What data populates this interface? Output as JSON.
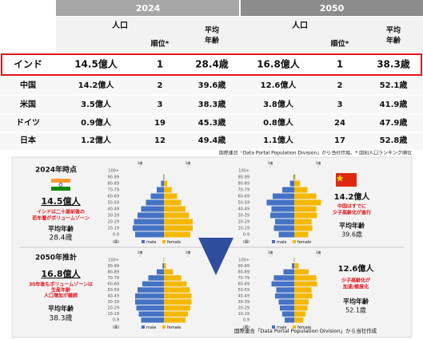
{
  "table": {
    "years": [
      "2024",
      "2050"
    ],
    "headers": {
      "population": "人口",
      "rank": "順位*",
      "age": [
        "平均",
        "年齢"
      ]
    },
    "rows": [
      [
        "インド",
        "14.5億人",
        1,
        "28.4歳",
        "16.8億人",
        1,
        "38.3歳"
      ],
      [
        "中国",
        "14.2億人",
        2,
        "39.6歳",
        "12.6億人",
        2,
        "52.1歳"
      ],
      [
        "米国",
        "3.5億人",
        3,
        "38.3歳",
        "3.8億人",
        3,
        "41.9歳"
      ],
      [
        "ドイツ",
        "0.9億人",
        19,
        "45.3歳",
        "0.8億人",
        24,
        "47.9歳"
      ],
      [
        "日本",
        "1.2億人",
        12,
        "49.4歳",
        "1.1億人",
        17,
        "52.8歳"
      ]
    ]
  },
  "note": "国際連合「Data Portal Population Division」から当社作成、* 国別人口ランキング順位",
  "infographic": {
    "top_label": "2024年時点",
    "india_2024_pop": "14.5億人",
    "india_2024_comment": [
      "インドは二十歳前後の",
      "若年層がボリュームゾーン"
    ],
    "age_label": "平均年齢",
    "india_2024_age": "28.4歳",
    "bottom_label": "2050年推計",
    "india_2050_pop": "16.8億人",
    "india_2050_comment": [
      "30年後もボリュームゾーンは",
      "生産年齢",
      "人口増加が継続"
    ],
    "india_2050_age": "38.3歳",
    "china_2024_pop": "14.2億人",
    "china_2024_comment": [
      "中国はすでに",
      "少子高齢化が進行"
    ],
    "china_2024_age": "39.6歳",
    "china_2050_pop": "12.6億人",
    "china_2050_comment": [
      "少子高齢化が",
      "加速/極度化"
    ],
    "china_2050_age": "52.1歳",
    "source": "国際連合「Data Portal Population Division」から当社作成"
  },
  "chart_data": [
    {
      "type": "pyramid",
      "ylabel": "(歳)",
      "categories": [
        "0-9",
        "10-19",
        "20-29",
        "30-39",
        "40-49",
        "50-59",
        "60-69",
        "70-79",
        "80-89",
        "90-99",
        "100+"
      ],
      "xlim": [
        0,
        1.4
      ],
      "xticks": [
        {
          "value": 1,
          "label": "1億"
        }
      ],
      "series": [
        {
          "name": "male",
          "color": "#4472c4",
          "values": [
            1.2,
            1.3,
            1.25,
            1.1,
            0.95,
            0.75,
            0.55,
            0.3,
            0.12,
            0.02,
            0
          ]
        },
        {
          "name": "female",
          "color": "#f5b800",
          "values": [
            1.1,
            1.2,
            1.2,
            1.05,
            0.9,
            0.72,
            0.55,
            0.32,
            0.14,
            0.03,
            0
          ]
        }
      ]
    },
    {
      "type": "pyramid",
      "ylabel": "(歳)",
      "categories": [
        "0-9",
        "10-19",
        "20-29",
        "30-39",
        "40-49",
        "50-59",
        "60-69",
        "70-79",
        "80-89",
        "90-99",
        "100+"
      ],
      "xlim": [
        0,
        1.4
      ],
      "xticks": [
        {
          "value": 1,
          "label": "1億"
        }
      ],
      "series": [
        {
          "name": "male",
          "color": "#4472c4",
          "values": [
            0.65,
            0.85,
            0.8,
            1.0,
            0.95,
            1.15,
            0.9,
            0.5,
            0.18,
            0.03,
            0
          ]
        },
        {
          "name": "female",
          "color": "#f5b800",
          "values": [
            0.58,
            0.75,
            0.72,
            0.95,
            0.92,
            1.12,
            0.92,
            0.55,
            0.24,
            0.05,
            0
          ]
        }
      ]
    },
    {
      "type": "pyramid",
      "ylabel": "(歳)",
      "categories": [
        "0-9",
        "10-19",
        "20-29",
        "30-39",
        "40-49",
        "50-59",
        "60-69",
        "70-79",
        "80-89",
        "90-99",
        "100+"
      ],
      "xlim": [
        0,
        1.4
      ],
      "xticks": [
        {
          "value": 1,
          "label": "1億"
        }
      ],
      "series": [
        {
          "name": "male",
          "color": "#4472c4",
          "values": [
            0.95,
            1.05,
            1.15,
            1.2,
            1.2,
            1.1,
            0.9,
            0.65,
            0.3,
            0.06,
            0.01
          ]
        },
        {
          "name": "female",
          "color": "#f5b800",
          "values": [
            0.9,
            1.0,
            1.1,
            1.15,
            1.15,
            1.08,
            0.95,
            0.72,
            0.38,
            0.09,
            0.01
          ]
        }
      ]
    },
    {
      "type": "pyramid",
      "ylabel": "(歳)",
      "categories": [
        "0-9",
        "10-19",
        "20-29",
        "30-39",
        "40-49",
        "50-59",
        "60-69",
        "70-79",
        "80-89",
        "90-99",
        "100+"
      ],
      "xlim": [
        0,
        1.4
      ],
      "xticks": [
        {
          "value": 1,
          "label": "1億"
        }
      ],
      "series": [
        {
          "name": "male",
          "color": "#4472c4",
          "values": [
            0.4,
            0.5,
            0.6,
            0.65,
            0.8,
            0.75,
            0.95,
            0.85,
            0.45,
            0.1,
            0.01
          ]
        },
        {
          "name": "female",
          "color": "#f5b800",
          "values": [
            0.38,
            0.47,
            0.55,
            0.6,
            0.75,
            0.72,
            0.95,
            0.92,
            0.6,
            0.18,
            0.02
          ]
        }
      ]
    }
  ]
}
